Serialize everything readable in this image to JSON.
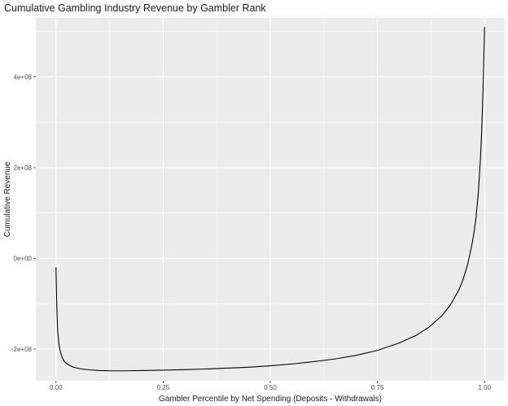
{
  "chart_data": {
    "type": "line",
    "title": "Cumulative Gambling Industry Revenue by Gambler Rank",
    "xlabel": "Gambler Percentile by Net Spending (Deposits - Withdrawals)",
    "ylabel": "Cumulative Revenue",
    "xlim": [
      -0.047,
      1.047
    ],
    "ylim": [
      -270000000,
      530000000
    ],
    "x_ticks": [
      {
        "value": 0.0,
        "label": "0.00"
      },
      {
        "value": 0.25,
        "label": "0.25"
      },
      {
        "value": 0.5,
        "label": "0.50"
      },
      {
        "value": 0.75,
        "label": "0.75"
      },
      {
        "value": 1.0,
        "label": "1.00"
      }
    ],
    "y_ticks": [
      {
        "value": -200000000,
        "label": "-2e+08"
      },
      {
        "value": 0,
        "label": "0e+00"
      },
      {
        "value": 200000000,
        "label": "2e+08"
      },
      {
        "value": 400000000,
        "label": "4e+08"
      }
    ],
    "grid": true,
    "background": "#ebebeb",
    "grid_color": "#ffffff",
    "line_color": "#000000",
    "series": [
      {
        "x": [
          0.0,
          0.002,
          0.004,
          0.007,
          0.01,
          0.015,
          0.02,
          0.03,
          0.04,
          0.06,
          0.08,
          0.1,
          0.13,
          0.16,
          0.2,
          0.25,
          0.3,
          0.35,
          0.4,
          0.45,
          0.5,
          0.55,
          0.6,
          0.65,
          0.7,
          0.75,
          0.8,
          0.84,
          0.87,
          0.9,
          0.92,
          0.94,
          0.95,
          0.96,
          0.97,
          0.975,
          0.98,
          0.985,
          0.99,
          0.993,
          0.996,
          0.998,
          1.0
        ],
        "y": [
          -20000000,
          -110000000,
          -160000000,
          -190000000,
          -205000000,
          -220000000,
          -228000000,
          -235000000,
          -240000000,
          -244000000,
          -246000000,
          -247500000,
          -248000000,
          -248000000,
          -247500000,
          -246500000,
          -245500000,
          -244000000,
          -242000000,
          -240000000,
          -237000000,
          -233000000,
          -228000000,
          -222000000,
          -214000000,
          -203000000,
          -187000000,
          -170000000,
          -152000000,
          -127000000,
          -103000000,
          -70000000,
          -46000000,
          -15000000,
          28000000,
          55000000,
          90000000,
          140000000,
          215000000,
          275000000,
          360000000,
          430000000,
          510000000
        ]
      }
    ]
  }
}
